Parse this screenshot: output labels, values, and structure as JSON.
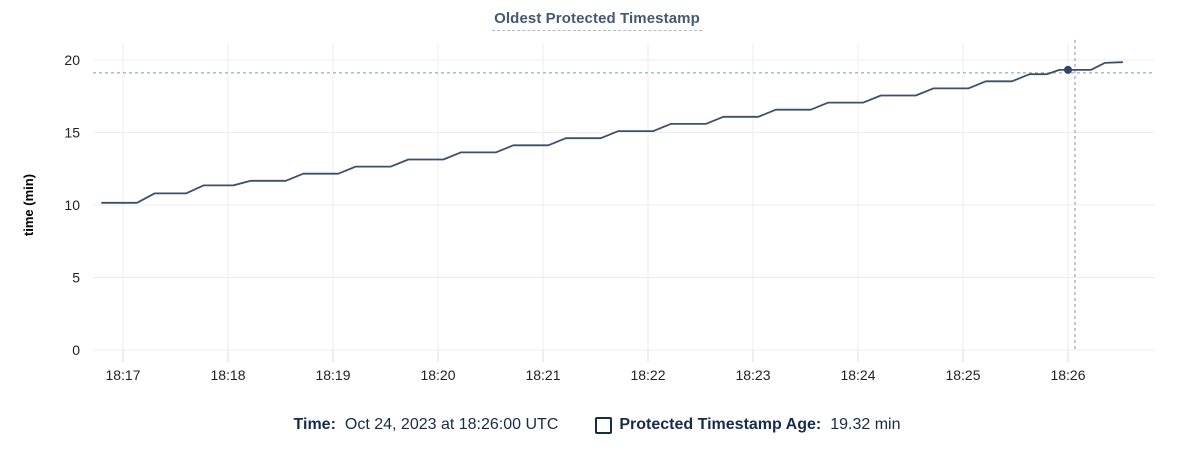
{
  "header": {
    "title": "Oldest Protected Timestamp"
  },
  "legend": {
    "time_label": "Time:",
    "time_value": "Oct 24, 2023 at 18:26:00 UTC",
    "series_label": "Protected Timestamp Age:",
    "series_value": "19.32 min"
  },
  "colors": {
    "title": "#475872",
    "title_underline": "#aebacb",
    "line": "#3f4e69",
    "dot": "#36455f",
    "grid": "#ececec",
    "axis_tick": "#dddddd",
    "axis_text": "#222222",
    "crosshair": "#a3b6c2",
    "legend_text": "#152c4a",
    "background": "#ffffff"
  },
  "chart_data": {
    "type": "line",
    "title": "Oldest Protected Timestamp",
    "xlabel": "",
    "ylabel": "time (min)",
    "ylim": [
      0,
      20
    ],
    "y_ticks": [
      0,
      5,
      10,
      15,
      20
    ],
    "x_tick_labels": [
      "18:17",
      "18:18",
      "18:19",
      "18:20",
      "18:21",
      "18:22",
      "18:23",
      "18:24",
      "18:25",
      "18:26"
    ],
    "x_tick_offsets_s": [
      0,
      60,
      120,
      180,
      240,
      300,
      360,
      420,
      480,
      540
    ],
    "x_range_s": [
      -17,
      571
    ],
    "grid": true,
    "legend_position": "bottom",
    "series": [
      {
        "name": "Protected Timestamp Age",
        "unit": "min",
        "points": [
          [
            -12,
            10.15
          ],
          [
            8,
            10.15
          ],
          [
            18,
            10.8
          ],
          [
            36,
            10.8
          ],
          [
            46,
            11.35
          ],
          [
            63,
            11.35
          ],
          [
            73,
            11.67
          ],
          [
            93,
            11.67
          ],
          [
            103,
            12.16
          ],
          [
            123,
            12.16
          ],
          [
            133,
            12.65
          ],
          [
            153,
            12.65
          ],
          [
            163,
            13.14
          ],
          [
            183,
            13.14
          ],
          [
            193,
            13.63
          ],
          [
            213,
            13.63
          ],
          [
            223,
            14.12
          ],
          [
            243,
            14.12
          ],
          [
            253,
            14.61
          ],
          [
            273,
            14.61
          ],
          [
            283,
            15.1
          ],
          [
            303,
            15.1
          ],
          [
            313,
            15.59
          ],
          [
            333,
            15.59
          ],
          [
            343,
            16.08
          ],
          [
            363,
            16.08
          ],
          [
            373,
            16.57
          ],
          [
            393,
            16.57
          ],
          [
            403,
            17.06
          ],
          [
            423,
            17.06
          ],
          [
            433,
            17.55
          ],
          [
            453,
            17.55
          ],
          [
            463,
            18.04
          ],
          [
            483,
            18.04
          ],
          [
            493,
            18.53
          ],
          [
            508,
            18.53
          ],
          [
            518,
            19.02
          ],
          [
            528,
            19.02
          ],
          [
            535,
            19.32
          ],
          [
            553,
            19.32
          ],
          [
            561,
            19.8
          ],
          [
            571,
            19.85
          ]
        ]
      }
    ],
    "hover": {
      "time_offset_s": 540,
      "time_label": "18:26",
      "time_full": "Oct 24, 2023 at 18:26:00 UTC",
      "value_min": 19.32
    }
  }
}
